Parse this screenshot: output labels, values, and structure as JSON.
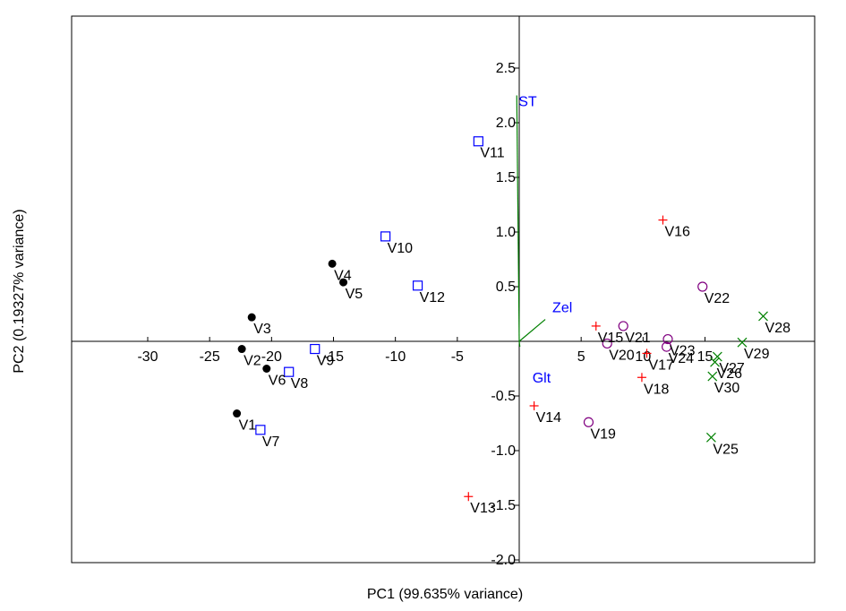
{
  "chart_data": {
    "type": "scatter",
    "title": "",
    "xlabel": "PC1 (99.635% variance)",
    "ylabel": "PC2 (0.19327% variance)",
    "xlim": [
      -30,
      30
    ],
    "ylim": [
      -2.0,
      3.0
    ],
    "x_ticks": [
      -30,
      -25,
      -20,
      -15,
      -10,
      -5,
      5,
      10,
      15
    ],
    "x_tick_labels": [
      "-30",
      "-25",
      "-20",
      "-15",
      "-10",
      "-5",
      "5",
      "10",
      "15"
    ],
    "y_ticks": [
      2.5,
      2.0,
      1.5,
      1.0,
      0.5,
      -0.5,
      -1.0,
      -1.5,
      -2.0
    ],
    "y_tick_labels": [
      "2.5",
      "2.0",
      "1.5",
      "1.0",
      "0.5",
      "-0.5",
      "-1.0",
      "-1.5",
      "-2.0"
    ],
    "grid": false,
    "legend": "none",
    "series": [
      {
        "marker": "filled-circle",
        "color": "#000000",
        "points": [
          {
            "label": "V1",
            "x": -22.8,
            "y": -0.66
          },
          {
            "label": "V2",
            "x": -22.4,
            "y": -0.07
          },
          {
            "label": "V3",
            "x": -21.6,
            "y": 0.22
          },
          {
            "label": "V4",
            "x": -15.1,
            "y": 0.71
          },
          {
            "label": "V5",
            "x": -14.2,
            "y": 0.54
          },
          {
            "label": "V6",
            "x": -20.4,
            "y": -0.25
          }
        ]
      },
      {
        "marker": "open-square",
        "color": "#0000ff",
        "points": [
          {
            "label": "V7",
            "x": -20.9,
            "y": -0.81
          },
          {
            "label": "V8",
            "x": -18.6,
            "y": -0.28
          },
          {
            "label": "V9",
            "x": -16.5,
            "y": -0.07
          },
          {
            "label": "V10",
            "x": -10.8,
            "y": 0.96
          },
          {
            "label": "V11",
            "x": -3.3,
            "y": 1.83
          },
          {
            "label": "V12",
            "x": -8.2,
            "y": 0.51
          }
        ]
      },
      {
        "marker": "plus",
        "color": "#ff0000",
        "points": [
          {
            "label": "V13",
            "x": -4.1,
            "y": -1.42
          },
          {
            "label": "V14",
            "x": 1.2,
            "y": -0.59
          },
          {
            "label": "V15",
            "x": 6.2,
            "y": 0.14
          },
          {
            "label": "V16",
            "x": 11.6,
            "y": 1.11
          },
          {
            "label": "V17",
            "x": 10.3,
            "y": -0.11
          },
          {
            "label": "V18",
            "x": 9.9,
            "y": -0.33
          }
        ]
      },
      {
        "marker": "open-circle",
        "color": "#800080",
        "points": [
          {
            "label": "V19",
            "x": 5.6,
            "y": -0.74
          },
          {
            "label": "V20",
            "x": 7.1,
            "y": -0.02
          },
          {
            "label": "V21",
            "x": 8.4,
            "y": 0.14
          },
          {
            "label": "V22",
            "x": 14.8,
            "y": 0.5
          },
          {
            "label": "V23",
            "x": 12.0,
            "y": 0.02
          },
          {
            "label": "V24",
            "x": 11.9,
            "y": -0.05
          }
        ]
      },
      {
        "marker": "cross",
        "color": "#008000",
        "points": [
          {
            "label": "V25",
            "x": 15.5,
            "y": -0.88
          },
          {
            "label": "V26",
            "x": 15.8,
            "y": -0.19
          },
          {
            "label": "V27",
            "x": 16.0,
            "y": -0.14
          },
          {
            "label": "V28",
            "x": 19.7,
            "y": 0.23
          },
          {
            "label": "V29",
            "x": 18.0,
            "y": -0.01
          },
          {
            "label": "V30",
            "x": 15.6,
            "y": -0.32
          }
        ]
      }
    ],
    "loading_vectors": [
      {
        "label": "ST",
        "x": -0.2,
        "y": 2.25
      },
      {
        "label": "Zel",
        "x": 2.1,
        "y": 0.2
      },
      {
        "label": "Glt",
        "x": 0.05,
        "y": -0.05
      }
    ]
  }
}
